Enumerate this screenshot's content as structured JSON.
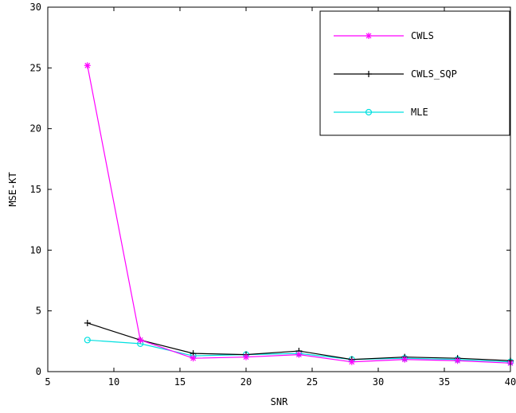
{
  "chart_data": {
    "type": "line",
    "xlabel": "SNR",
    "ylabel": "MSE-KT",
    "xlim": [
      5,
      40
    ],
    "ylim": [
      0,
      30
    ],
    "xticks": [
      5,
      10,
      15,
      20,
      25,
      30,
      35,
      40
    ],
    "yticks": [
      0,
      5,
      10,
      15,
      20,
      25,
      30
    ],
    "x": [
      8,
      12,
      16,
      20,
      24,
      28,
      32,
      36,
      40
    ],
    "grid": false,
    "legend_position": "top-right",
    "series": [
      {
        "name": "CWLS",
        "color": "#ff00ff",
        "marker": "asterisk",
        "values": [
          25.2,
          2.6,
          1.1,
          1.2,
          1.4,
          0.8,
          1.0,
          0.9,
          0.7
        ]
      },
      {
        "name": "CWLS_SQP",
        "color": "#000000",
        "marker": "plus",
        "values": [
          4.0,
          2.6,
          1.5,
          1.4,
          1.7,
          1.0,
          1.2,
          1.1,
          0.9
        ]
      },
      {
        "name": "MLE",
        "color": "#00e0e0",
        "marker": "circle",
        "values": [
          2.6,
          2.3,
          1.3,
          1.4,
          1.5,
          1.0,
          1.1,
          1.0,
          0.8
        ]
      }
    ]
  }
}
